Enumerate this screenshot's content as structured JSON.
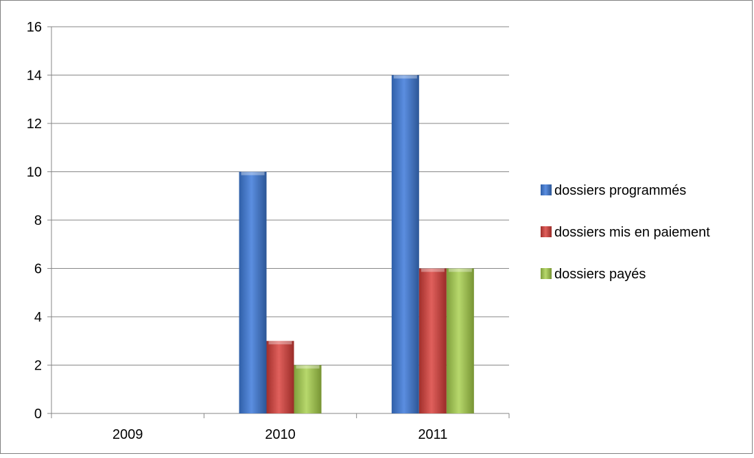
{
  "chart_data": {
    "type": "bar",
    "title": "",
    "xlabel": "",
    "ylabel": "",
    "categories": [
      "2009",
      "2010",
      "2011"
    ],
    "ylim": [
      0,
      16
    ],
    "yticks": [
      0,
      2,
      4,
      6,
      8,
      10,
      12,
      14,
      16
    ],
    "grid": true,
    "legend_position": "right",
    "series": [
      {
        "name": "dossiers programmés",
        "values": [
          0,
          10,
          14
        ],
        "color": "#4472c4"
      },
      {
        "name": "dossiers mis en paiement",
        "values": [
          0,
          3,
          6
        ],
        "color": "#c0504d"
      },
      {
        "name": "dossiers payés",
        "values": [
          0,
          2,
          6
        ],
        "color": "#9bbb59"
      }
    ]
  }
}
